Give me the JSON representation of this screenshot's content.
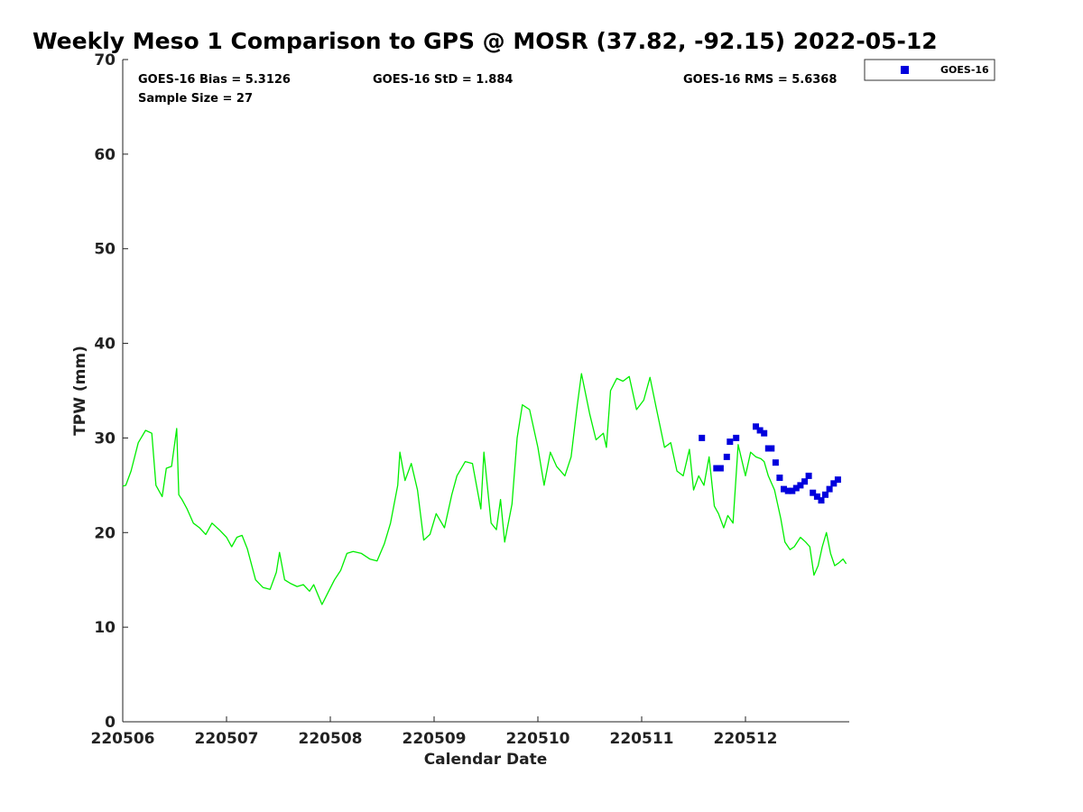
{
  "chart_data": {
    "type": "line",
    "title": "Weekly Meso 1 Comparison to GPS @ MOSR (37.82, -92.15) 2022-05-12",
    "xlabel": "Calendar Date",
    "ylabel": "TPW (mm)",
    "xlim": [
      220506,
      220513
    ],
    "ylim": [
      0,
      70
    ],
    "yticks": [
      0,
      10,
      20,
      30,
      40,
      50,
      60,
      70
    ],
    "xticks": [
      220506,
      220507,
      220508,
      220509,
      220510,
      220511,
      220512
    ],
    "xtick_labels": [
      "220506",
      "220507",
      "220508",
      "220509",
      "220510",
      "220511",
      "220512"
    ],
    "stats": {
      "bias": "GOES-16 Bias = 5.3126",
      "std": "GOES-16 StD = 1.884",
      "rms": "GOES-16 RMS = 5.6368",
      "sample": "Sample Size = 27"
    },
    "legend": {
      "position": "top-right",
      "entries": [
        "GOES-16"
      ]
    },
    "colors": {
      "gps_line": "#00ee00",
      "goes": "#0000dd"
    },
    "series": [
      {
        "role": "gps",
        "x": [
          220506.0,
          220506.03,
          220506.08,
          220506.15,
          220506.22,
          220506.28,
          220506.32,
          220506.38,
          220506.42,
          220506.47,
          220506.52,
          220506.54,
          220506.57,
          220506.62,
          220506.68,
          220506.74,
          220506.8,
          220506.86,
          220506.93,
          220507.0,
          220507.05,
          220507.1,
          220507.15,
          220507.2,
          220507.28,
          220507.35,
          220507.42,
          220507.48,
          220507.51,
          220507.56,
          220507.62,
          220507.68,
          220507.74,
          220507.8,
          220507.84,
          220507.92,
          220507.97,
          220508.04,
          220508.1,
          220508.16,
          220508.22,
          220508.3,
          220508.38,
          220508.45,
          220508.52,
          220508.58,
          220508.65,
          220508.67,
          220508.72,
          220508.78,
          220508.84,
          220508.9,
          220508.96,
          220509.02,
          220509.1,
          220509.17,
          220509.22,
          220509.3,
          220509.37,
          220509.45,
          220509.48,
          220509.55,
          220509.6,
          220509.64,
          220509.68,
          220509.75,
          220509.8,
          220509.85,
          220509.92,
          220510.0,
          220510.06,
          220510.12,
          220510.18,
          220510.26,
          220510.32,
          220510.38,
          220510.42,
          220510.5,
          220510.56,
          220510.63,
          220510.66,
          220510.7,
          220510.76,
          220510.82,
          220510.88,
          220510.95,
          220511.02,
          220511.08,
          220511.14,
          220511.22,
          220511.28,
          220511.34,
          220511.4,
          220511.46,
          220511.5,
          220511.55,
          220511.6,
          220511.65,
          220511.7,
          220511.74,
          220511.79,
          220511.83,
          220511.88,
          220511.93,
          220512.0,
          220512.05,
          220512.1,
          220512.15,
          220512.18,
          220512.22,
          220512.28,
          220512.34,
          220512.38,
          220512.43,
          220512.47,
          220512.53,
          220512.58,
          220512.62,
          220512.66,
          220512.7,
          220512.74,
          220512.78,
          220512.82,
          220512.86,
          220512.9,
          220512.94,
          220512.97
        ],
        "values": [
          24.9,
          25.0,
          26.5,
          29.5,
          30.8,
          30.5,
          25.0,
          23.8,
          26.8,
          27.0,
          31.0,
          24.0,
          23.5,
          22.5,
          21.0,
          20.5,
          19.8,
          21.0,
          20.3,
          19.5,
          18.5,
          19.5,
          19.7,
          18.3,
          15.0,
          14.2,
          14.0,
          15.8,
          17.9,
          15.0,
          14.6,
          14.3,
          14.5,
          13.8,
          14.5,
          12.4,
          13.5,
          15.0,
          16.0,
          17.8,
          18.0,
          17.8,
          17.2,
          17.0,
          18.8,
          21.0,
          25.0,
          28.5,
          25.5,
          27.3,
          24.5,
          19.2,
          19.8,
          22.0,
          20.5,
          24.0,
          26.0,
          27.5,
          27.3,
          22.5,
          28.5,
          21.0,
          20.3,
          23.5,
          19.0,
          23.0,
          30.0,
          33.5,
          33.0,
          29.0,
          25.0,
          28.5,
          27.0,
          26.0,
          28.0,
          33.5,
          36.8,
          32.5,
          29.8,
          30.5,
          29.0,
          35.0,
          36.3,
          36.0,
          36.5,
          33.0,
          34.0,
          36.4,
          33.2,
          29.0,
          29.5,
          26.5,
          26.0,
          28.8,
          24.5,
          26.0,
          25.0,
          28.0,
          22.8,
          22.0,
          20.5,
          21.8,
          21.0,
          29.3,
          26.0,
          28.5,
          28.0,
          27.8,
          27.5,
          26.0,
          24.5,
          21.5,
          19.0,
          18.2,
          18.5,
          19.5,
          19.0,
          18.5,
          15.5,
          16.5,
          18.5,
          20.0,
          17.8,
          16.5,
          16.8,
          17.2,
          16.7
        ]
      },
      {
        "name": "GOES-16",
        "role": "goes",
        "x": [
          220511.58,
          220511.72,
          220511.76,
          220511.82,
          220511.85,
          220511.91,
          220512.1,
          220512.14,
          220512.18,
          220512.22,
          220512.25,
          220512.29,
          220512.33,
          220512.37,
          220512.41,
          220512.45,
          220512.49,
          220512.53,
          220512.57,
          220512.61,
          220512.65,
          220512.69,
          220512.73,
          220512.77,
          220512.81,
          220512.85,
          220512.89
        ],
        "values": [
          30.0,
          26.8,
          26.8,
          28.0,
          29.6,
          30.0,
          31.2,
          30.8,
          30.5,
          28.9,
          28.9,
          27.4,
          25.8,
          24.6,
          24.4,
          24.4,
          24.7,
          25.0,
          25.4,
          26.0,
          24.2,
          23.8,
          23.4,
          24.0,
          24.6,
          25.2,
          25.6
        ]
      }
    ]
  }
}
